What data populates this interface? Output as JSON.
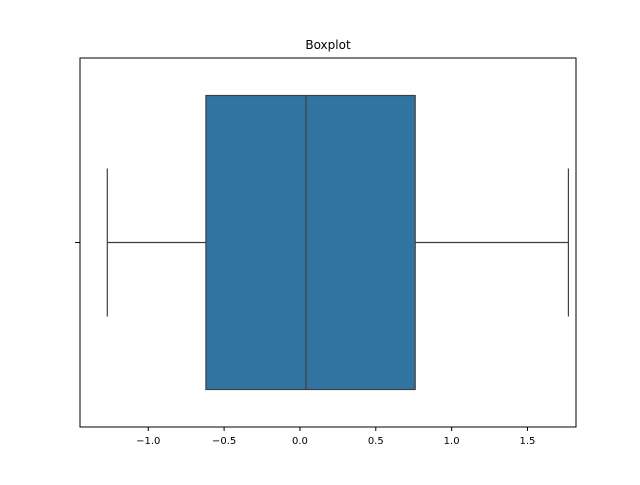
{
  "chart_data": {
    "type": "boxplot",
    "title": "Boxplot",
    "xlabel": "",
    "ylabel": "",
    "orientation": "horizontal",
    "xlim": [
      -1.45,
      1.82
    ],
    "xticks": [
      -1.0,
      -0.5,
      0.0,
      0.5,
      1.0,
      1.5
    ],
    "xtick_labels": [
      "−1.0",
      "−0.5",
      "0.0",
      "0.5",
      "1.0",
      "1.5"
    ],
    "series": [
      {
        "whisker_low": -1.27,
        "q1": -0.62,
        "median": 0.04,
        "q3": 0.76,
        "whisker_high": 1.77
      }
    ],
    "colors": {
      "box_fill": "#3274a1",
      "line": "#3f3f3f",
      "axes": "#000000"
    },
    "grid": false,
    "legend": "none"
  }
}
